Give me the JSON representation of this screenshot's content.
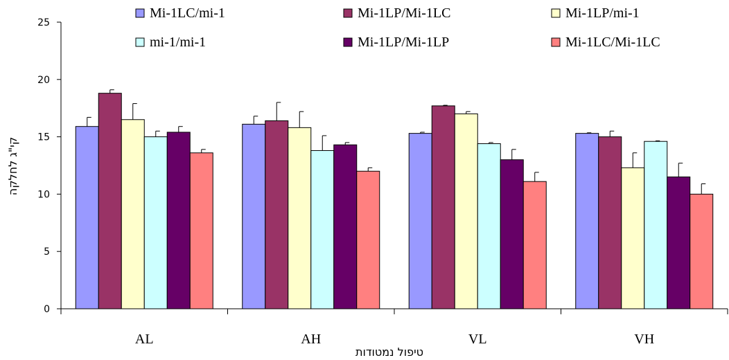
{
  "chart_data": {
    "type": "bar",
    "title": "",
    "xlabel": "טיפול נמטודות",
    "ylabel": "קי\"ג לחלקה",
    "categories": [
      "AL",
      "AH",
      "VL",
      "VH"
    ],
    "ylim": [
      0,
      25
    ],
    "yticks": [
      0,
      5,
      10,
      15,
      20,
      25
    ],
    "grid": false,
    "legend_position": "top",
    "series": [
      {
        "name": "Mi-1LC/mi-1",
        "color": "#9999ff",
        "values": [
          15.9,
          16.1,
          15.3,
          15.3
        ],
        "errors": [
          0.8,
          0.7,
          0.1,
          0.05
        ]
      },
      {
        "name": "mi-1/mi-1",
        "color": "#ccffff",
        "values": [
          15.0,
          13.8,
          14.4,
          14.6
        ],
        "errors": [
          0.5,
          1.3,
          0.1,
          0.05
        ]
      },
      {
        "name": "Mi-1LP/Mi-1LC",
        "color": "#993366",
        "values": [
          18.8,
          16.4,
          17.7,
          15.0
        ],
        "errors": [
          0.3,
          1.6,
          0.05,
          0.5
        ]
      },
      {
        "name": "Mi-1LP/Mi-1LP",
        "color": "#660066",
        "values": [
          15.4,
          14.3,
          13.0,
          11.5
        ],
        "errors": [
          0.5,
          0.2,
          0.9,
          1.2
        ]
      },
      {
        "name": "Mi-1LP/mi-1",
        "color": "#ffffcc",
        "values": [
          16.5,
          15.8,
          17.0,
          12.3
        ],
        "errors": [
          1.4,
          1.4,
          0.2,
          1.3
        ]
      },
      {
        "name": "Mi-1LC/Mi-1LC",
        "color": "#ff8080",
        "values": [
          13.6,
          12.0,
          11.1,
          10.0
        ],
        "errors": [
          0.3,
          0.3,
          0.8,
          0.9
        ]
      }
    ],
    "bar_order": [
      0,
      2,
      4,
      1,
      3,
      5
    ]
  }
}
